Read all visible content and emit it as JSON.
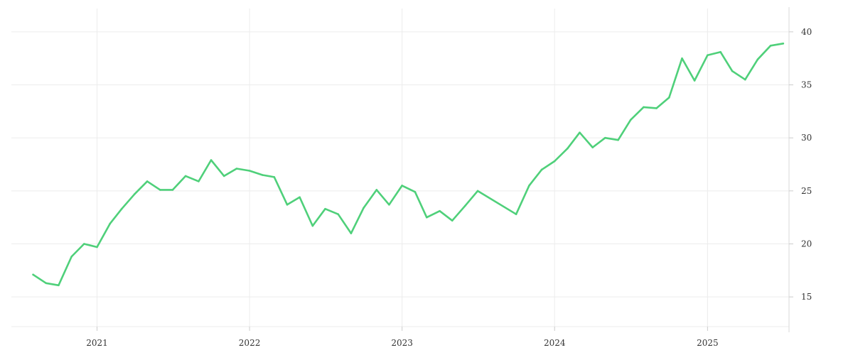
{
  "chart_data": {
    "type": "line",
    "title": "",
    "xlabel": "",
    "ylabel": "",
    "x_ticks": [
      "2021",
      "2022",
      "2023",
      "2024",
      "2025"
    ],
    "y_ticks": [
      "15",
      "20",
      "25",
      "30",
      "35",
      "40"
    ],
    "xlim": [
      "2020-06-10",
      "2025-07-15"
    ],
    "ylim": [
      12.2,
      42.2
    ],
    "grid": true,
    "y_axis_side": "right",
    "series": [
      {
        "color": "#4fd07a",
        "x": [
          "2020-08-01",
          "2020-09-01",
          "2020-10-01",
          "2020-11-01",
          "2020-12-01",
          "2021-01-01",
          "2021-02-01",
          "2021-03-01",
          "2021-04-01",
          "2021-05-01",
          "2021-06-01",
          "2021-07-01",
          "2021-08-01",
          "2021-09-01",
          "2021-10-01",
          "2021-11-01",
          "2021-12-01",
          "2022-01-01",
          "2022-02-01",
          "2022-03-01",
          "2022-04-01",
          "2022-05-01",
          "2022-06-01",
          "2022-07-01",
          "2022-08-01",
          "2022-09-01",
          "2022-10-01",
          "2022-11-01",
          "2022-12-01",
          "2023-01-01",
          "2023-02-01",
          "2023-03-01",
          "2023-04-01",
          "2023-05-01",
          "2023-06-01",
          "2023-07-01",
          "2023-10-01",
          "2023-11-01",
          "2023-12-01",
          "2024-01-01",
          "2024-02-01",
          "2024-03-01",
          "2024-04-01",
          "2024-05-01",
          "2024-06-01",
          "2024-07-01",
          "2024-08-01",
          "2024-09-01",
          "2024-10-01",
          "2024-11-01",
          "2024-12-01",
          "2025-01-01",
          "2025-02-01",
          "2025-03-01",
          "2025-04-01",
          "2025-05-01",
          "2025-06-01",
          "2025-07-01"
        ],
        "values": [
          17.1,
          16.3,
          16.1,
          18.8,
          20.0,
          19.7,
          21.9,
          23.3,
          24.7,
          25.9,
          25.1,
          25.1,
          26.4,
          25.9,
          27.9,
          26.4,
          27.1,
          26.9,
          26.5,
          26.3,
          23.7,
          24.4,
          21.7,
          23.3,
          22.8,
          21.0,
          23.4,
          25.1,
          23.7,
          25.5,
          24.9,
          22.5,
          23.1,
          22.2,
          23.6,
          25.0,
          22.8,
          25.5,
          27.0,
          27.8,
          29.0,
          30.5,
          29.1,
          30.0,
          29.8,
          31.7,
          32.9,
          32.8,
          33.8,
          37.5,
          35.4,
          37.8,
          38.1,
          36.3,
          35.5,
          37.4,
          38.7,
          38.9
        ]
      }
    ]
  }
}
